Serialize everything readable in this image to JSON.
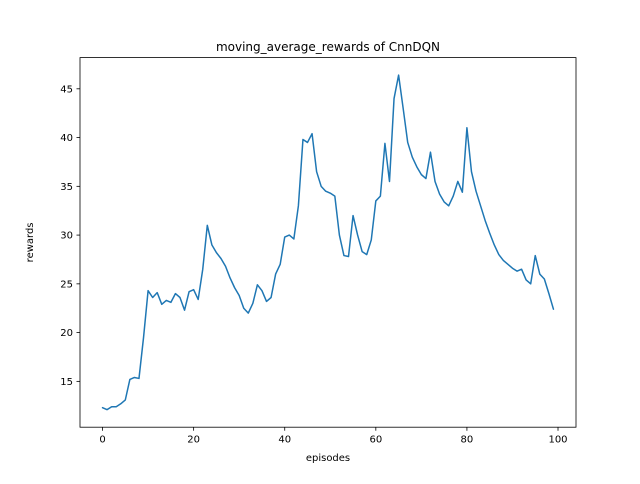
{
  "chart_data": {
    "type": "line",
    "title": "moving_average_rewards of CnnDQN",
    "xlabel": "episodes",
    "ylabel": "rewards",
    "line_color": "#1f77b4",
    "line_width": 1.5,
    "grid": false,
    "legend": "none",
    "xlim": [
      -4.95,
      103.95
    ],
    "ylim": [
      10.3,
      48.2
    ],
    "xticks": [
      0,
      20,
      40,
      60,
      80,
      100
    ],
    "yticks": [
      15,
      20,
      25,
      30,
      35,
      40,
      45
    ],
    "x_start": 0,
    "x_step": 1,
    "values": [
      12.3,
      12.1,
      12.4,
      12.4,
      12.7,
      13.1,
      15.2,
      15.4,
      15.3,
      19.5,
      24.3,
      23.6,
      24.1,
      22.9,
      23.3,
      23.1,
      24.0,
      23.6,
      22.3,
      24.2,
      24.4,
      23.4,
      26.5,
      31.0,
      29.0,
      28.2,
      27.6,
      26.8,
      25.6,
      24.6,
      23.8,
      22.5,
      22.0,
      23.0,
      24.9,
      24.3,
      23.2,
      23.6,
      26.0,
      27.0,
      29.8,
      30.0,
      29.6,
      33.0,
      39.8,
      39.5,
      40.4,
      36.5,
      35.0,
      34.5,
      34.3,
      34.0,
      30.0,
      27.9,
      27.8,
      32.0,
      30.0,
      28.3,
      28.0,
      29.5,
      33.5,
      34.0,
      39.4,
      35.5,
      44.0,
      46.4,
      43.0,
      39.5,
      38.0,
      37.0,
      36.2,
      35.8,
      38.5,
      35.5,
      34.2,
      33.4,
      33.0,
      34.0,
      35.5,
      34.4,
      41.0,
      36.5,
      34.5,
      33.0,
      31.5,
      30.2,
      29.0,
      28.0,
      27.4,
      27.0,
      26.6,
      26.3,
      26.5,
      25.4,
      25.0,
      27.9,
      26.0,
      25.5,
      24.0,
      22.4
    ]
  }
}
